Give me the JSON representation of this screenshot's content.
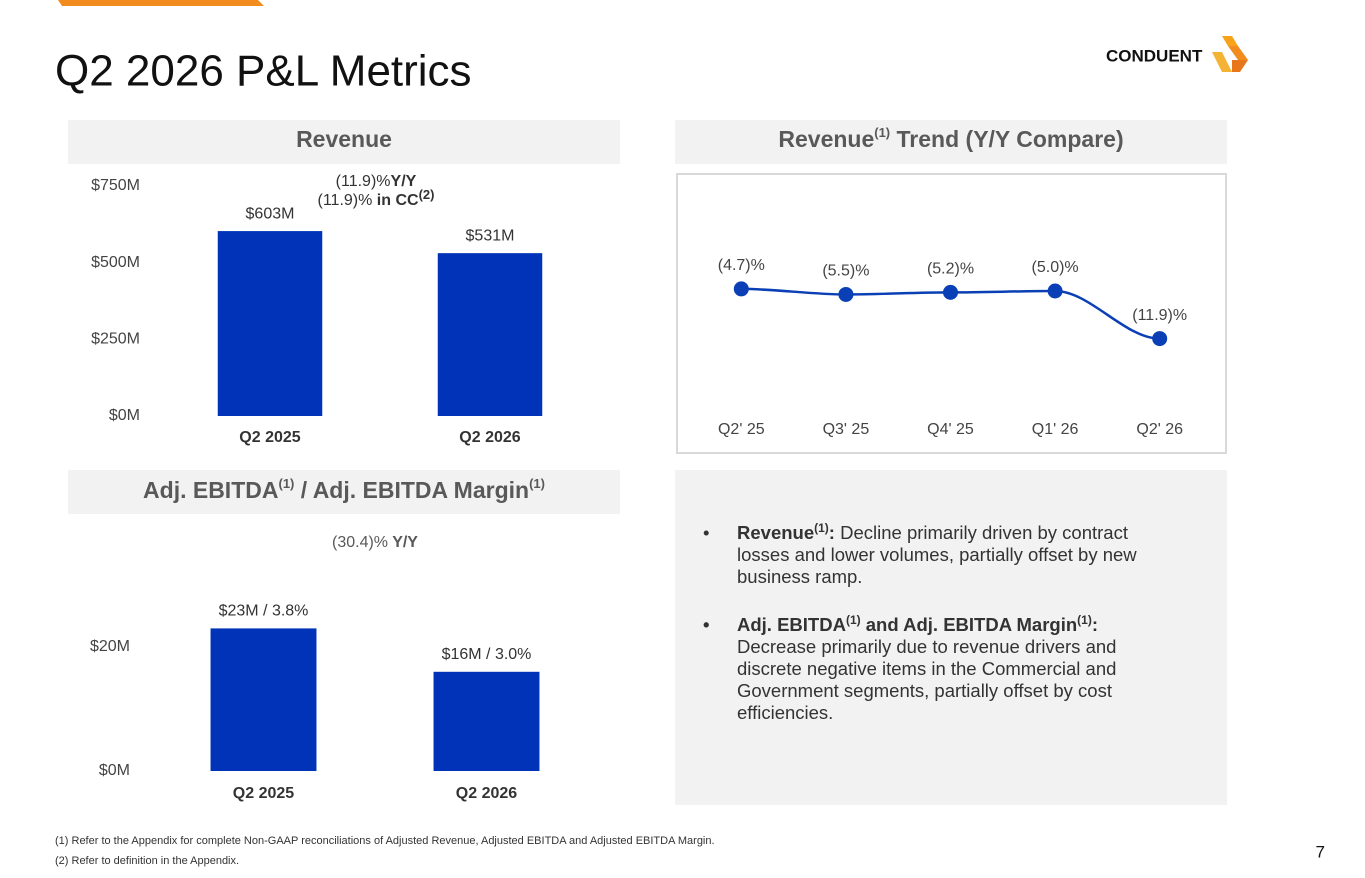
{
  "title": "Q2 2026 P&L Metrics",
  "logo": "CONDUENT",
  "page_number": "7",
  "footnotes": [
    "(1) Refer to the Appendix for complete Non-GAAP reconciliations of Adjusted Revenue, Adjusted EBITDA and Adjusted EBITDA Margin.",
    "(2) Refer to definition in the Appendix."
  ],
  "bullets": [
    [
      "Revenue",
      "(1)",
      ":",
      " Decline primarily driven by contract losses and lower volumes, partially offset by new business ramp."
    ],
    [
      "Adj. EBITDA",
      "(1)",
      " and Adj. EBITDA Margin",
      "(1)",
      ":",
      "Decrease primarily due to revenue drivers and discrete negative items in the Commercial and Government segments, partially offset by cost efficiencies."
    ]
  ],
  "chart_data": [
    {
      "type": "bar",
      "title": [
        "Revenue"
      ],
      "annotation": [
        [
          "(11.9)%",
          "Y/Y"
        ],
        [
          "(11.9)%",
          " in CC",
          "(2)"
        ]
      ],
      "categories": [
        "Q2 2025",
        "Q2 2026"
      ],
      "values": [
        603,
        531
      ],
      "value_labels": [
        "$603M",
        "$531M"
      ],
      "color": "#0033b8",
      "ylim": [
        0,
        750
      ],
      "yticks": [
        {
          "value": 0,
          "label": "$0M"
        },
        {
          "value": 250,
          "label": "$250M"
        },
        {
          "value": 500,
          "label": "$500M"
        },
        {
          "value": 750,
          "label": "$750M"
        }
      ]
    },
    {
      "type": "line",
      "title": [
        "Revenue",
        "(1)",
        " Trend (Y/Y Compare)"
      ],
      "categories": [
        "Q2' 25",
        "Q3' 25",
        "Q4' 25",
        "Q1' 26",
        "Q2' 26"
      ],
      "values": [
        -4.7,
        -5.5,
        -5.2,
        -5.0,
        -11.9
      ],
      "value_labels": [
        "(4.7)%",
        "(5.5)%",
        "(5.2)%",
        "(5.0)%",
        "(11.9)%"
      ],
      "color": "#0a3fb5",
      "ylim": [
        -20,
        0
      ]
    },
    {
      "type": "bar",
      "title": [
        "Adj. EBITDA",
        "(1)",
        " / Adj. EBITDA Margin",
        "(1)"
      ],
      "annotation": [
        [
          "(30.4)%",
          " Y/Y"
        ]
      ],
      "categories": [
        "Q2 2025",
        "Q2 2026"
      ],
      "values": [
        23,
        16
      ],
      "value_labels": [
        "$23M / 3.8%",
        "$16M / 3.0%"
      ],
      "color": "#0033b8",
      "ylim": [
        0,
        30
      ],
      "yticks": [
        {
          "value": 0,
          "label": "$0M"
        },
        {
          "value": 20,
          "label": "$20M"
        }
      ]
    }
  ]
}
